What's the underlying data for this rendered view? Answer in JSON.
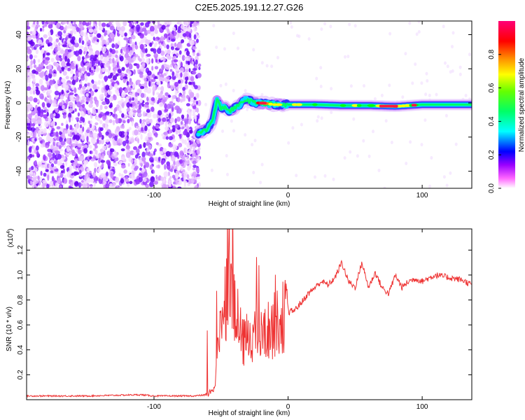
{
  "title": "C2E5.2025.191.12.27.G26",
  "chart_data": [
    {
      "type": "heatmap",
      "xlabel": "Height of straight line (km)",
      "ylabel": "Frequency (Hz)",
      "xlim": [
        -195,
        137
      ],
      "ylim": [
        -50,
        48
      ],
      "x_ticks": [
        -100,
        0,
        100
      ],
      "y_ticks": [
        -40,
        -20,
        0,
        20,
        40
      ],
      "colorbar": {
        "label": "Normalized spectral amplitude",
        "range": [
          0.0,
          1.0
        ],
        "ticks": [
          0.0,
          0.2,
          0.4,
          0.6,
          0.8
        ],
        "colormap": [
          "#ffffff",
          "#ff66ff",
          "#8800ff",
          "#0000ff",
          "#00ffff",
          "#00ff00",
          "#ffff00",
          "#ff8800",
          "#ff0000",
          "#ff0066"
        ]
      },
      "signal_track": {
        "x": [
          -67,
          -60,
          -56,
          -53,
          -50,
          -47,
          -44,
          -40,
          -36,
          -32,
          -28,
          -25,
          -20,
          -10,
          0,
          10,
          20,
          40,
          60,
          80,
          100,
          120,
          137
        ],
        "freq": [
          -18,
          -15,
          -10,
          2,
          -3,
          -2,
          -5,
          -3,
          -1,
          2,
          1,
          0,
          0,
          -1,
          -1,
          -1,
          -1,
          -1.5,
          -1.5,
          -2,
          -1,
          -1,
          -1
        ],
        "amplitude": [
          0.25,
          0.3,
          0.35,
          0.4,
          0.4,
          0.35,
          0.4,
          0.45,
          0.5,
          0.5,
          0.55,
          0.6,
          0.85,
          0.6,
          0.5,
          0.55,
          0.5,
          0.5,
          0.5,
          0.8,
          0.5,
          0.45,
          0.45
        ]
      },
      "noise_region": [
        -195,
        -67
      ]
    },
    {
      "type": "line",
      "xlabel": "Height of straight line (km)",
      "ylabel": "SNR (10 * v/v)",
      "y_scale_label": "(x10",
      "y_scale_exponent": "4",
      "xlim": [
        -195,
        137
      ],
      "ylim": [
        0,
        1.37
      ],
      "x_ticks": [
        -100,
        0,
        100
      ],
      "y_ticks": [
        0.2,
        0.4,
        0.6,
        0.8,
        1.0,
        1.2
      ],
      "line_color": "#ee3333",
      "series": [
        {
          "x": [
            -195,
            -150,
            -110,
            -100,
            -70,
            -60,
            -55,
            -52,
            -50,
            -45,
            -42,
            -40,
            -38,
            -36,
            -34,
            -30,
            -25,
            -20,
            -15,
            -10,
            -5,
            0,
            5,
            10,
            15,
            20,
            25,
            30,
            35,
            40,
            45,
            50,
            55,
            60,
            65,
            70,
            75,
            80,
            85,
            90,
            95,
            100,
            110,
            120,
            130,
            137
          ],
          "values": [
            0.03,
            0.03,
            0.04,
            0.03,
            0.03,
            0.04,
            0.1,
            0.4,
            0.7,
            0.9,
            1.05,
            0.7,
            0.5,
            0.55,
            0.45,
            0.5,
            0.55,
            0.5,
            0.55,
            0.6,
            0.65,
            0.7,
            0.72,
            0.78,
            0.85,
            0.9,
            0.95,
            0.92,
            0.98,
            1.1,
            0.95,
            0.9,
            1.1,
            0.9,
            1.02,
            0.9,
            0.85,
            1.0,
            0.9,
            0.95,
            0.97,
            0.95,
            1.0,
            0.98,
            0.96,
            0.92
          ]
        }
      ]
    }
  ]
}
